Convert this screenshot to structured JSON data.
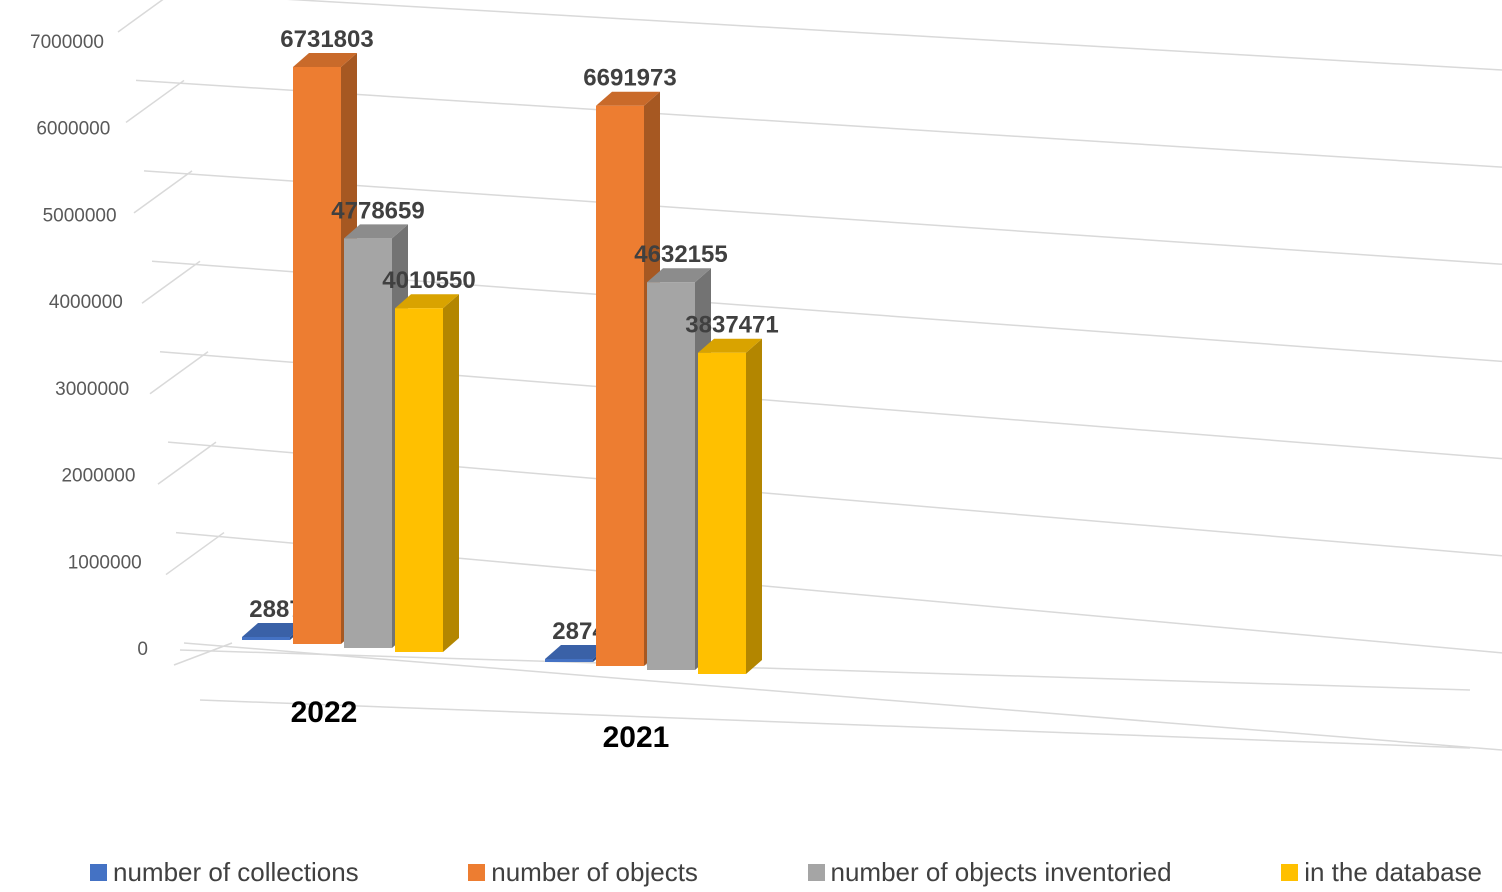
{
  "chart_data": {
    "type": "bar",
    "variant": "3d-clustered-column",
    "title": "",
    "xlabel": "",
    "ylabel": "",
    "categories": [
      "2022",
      "2021"
    ],
    "series": [
      {
        "name": "number of collections",
        "values": [
          2887,
          2874
        ],
        "color": "#4472C4"
      },
      {
        "name": "number of objects",
        "values": [
          6731803,
          6691973
        ],
        "color": "#ED7D31"
      },
      {
        "name": "number of objects inventoried",
        "values": [
          4778659,
          4632155
        ],
        "color": "#A5A5A5"
      },
      {
        "name": "in the database",
        "values": [
          4010550,
          3837471
        ],
        "color": "#FFC000"
      }
    ],
    "yticks": [
      0,
      1000000,
      2000000,
      3000000,
      4000000,
      5000000,
      6000000,
      7000000
    ],
    "ylim": [
      0,
      7000000
    ],
    "grid": true,
    "legend_position": "bottom"
  }
}
